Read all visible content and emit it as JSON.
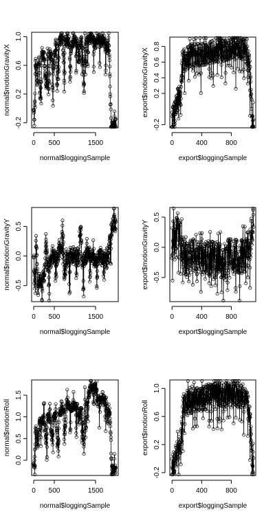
{
  "chart_data": [
    {
      "type": "scatter",
      "xlabel": "normal$loggingSample",
      "ylabel": "normal$motionGravityX",
      "xlim": [
        -50,
        2050
      ],
      "ylim": [
        -0.27,
        1.06
      ],
      "xticks": [
        0,
        500,
        1500
      ],
      "yticks": [
        -0.2,
        0.2,
        0.6,
        1.0
      ],
      "ytick_labels": [
        "-0.2",
        "0.2",
        "0.6",
        "1.0"
      ],
      "n_points": 2000,
      "segments": [
        [
          0,
          0.05
        ],
        [
          15,
          -0.2
        ],
        [
          40,
          0.7
        ],
        [
          100,
          0.3
        ],
        [
          130,
          0.75
        ],
        [
          160,
          0.1
        ],
        [
          200,
          0.8
        ],
        [
          230,
          0.72
        ],
        [
          260,
          0.65
        ],
        [
          300,
          0.3
        ],
        [
          340,
          0.8
        ],
        [
          360,
          0.2
        ],
        [
          400,
          0.75
        ],
        [
          440,
          0.7
        ],
        [
          470,
          0.5
        ],
        [
          510,
          0.75
        ],
        [
          550,
          0.85
        ],
        [
          570,
          0.2
        ],
        [
          600,
          0.9
        ],
        [
          650,
          0.95
        ],
        [
          700,
          1.0
        ],
        [
          740,
          0.5
        ],
        [
          760,
          0.95
        ],
        [
          820,
          0.9
        ],
        [
          860,
          0.95
        ],
        [
          880,
          0.6
        ],
        [
          900,
          0.8
        ],
        [
          940,
          0.9
        ],
        [
          990,
          0.95
        ],
        [
          1000,
          0.95
        ],
        [
          1060,
          0.9
        ],
        [
          1100,
          0.6
        ],
        [
          1130,
          0.9
        ],
        [
          1180,
          0.95
        ],
        [
          1220,
          0.2
        ],
        [
          1240,
          0.9
        ],
        [
          1260,
          0.5
        ],
        [
          1280,
          0.95
        ],
        [
          1320,
          0.98
        ],
        [
          1360,
          0.95
        ],
        [
          1400,
          0.97
        ],
        [
          1440,
          0.95
        ],
        [
          1500,
          0.9
        ],
        [
          1550,
          0.97
        ],
        [
          1600,
          0.98
        ],
        [
          1640,
          0.92
        ],
        [
          1700,
          0.95
        ],
        [
          1750,
          0.9
        ],
        [
          1800,
          0.8
        ],
        [
          1830,
          0.85
        ],
        [
          1860,
          0.1
        ],
        [
          1880,
          -0.2
        ],
        [
          1940,
          -0.25
        ],
        [
          1990,
          -0.2
        ]
      ],
      "amp": 0.07,
      "dips": 14
    },
    {
      "type": "scatter",
      "xlabel": "export$loggingSample",
      "ylabel": "export$motionGravityX",
      "xlim": [
        -30,
        1130
      ],
      "ylim": [
        -0.24,
        0.92
      ],
      "xticks": [
        0,
        400,
        800
      ],
      "yticks": [
        -0.2,
        0.2,
        0.4,
        0.6,
        0.8
      ],
      "ytick_labels": [
        "-0.2",
        "0.2",
        "0.4",
        "0.6",
        "0.8"
      ],
      "n_points": 1100,
      "segments": [
        [
          0,
          -0.15
        ],
        [
          30,
          -0.05
        ],
        [
          60,
          0.05
        ],
        [
          90,
          0.15
        ],
        [
          120,
          0.2
        ],
        [
          140,
          0.6
        ],
        [
          200,
          0.65
        ],
        [
          300,
          0.7
        ],
        [
          400,
          0.7
        ],
        [
          500,
          0.72
        ],
        [
          600,
          0.75
        ],
        [
          700,
          0.75
        ],
        [
          800,
          0.78
        ],
        [
          900,
          0.78
        ],
        [
          1000,
          0.75
        ],
        [
          1050,
          0.5
        ],
        [
          1080,
          -0.1
        ],
        [
          1100,
          -0.15
        ]
      ],
      "amp": 0.15,
      "dips": 40
    },
    {
      "type": "scatter",
      "xlabel": "normal$loggingSample",
      "ylabel": "normal$motionGravityY",
      "xlim": [
        -50,
        2050
      ],
      "ylim": [
        -0.77,
        0.82
      ],
      "xticks": [
        0,
        500,
        1500
      ],
      "yticks": [
        -0.5,
        0.0,
        0.5
      ],
      "ytick_labels": [
        "-0.5",
        "0.0",
        "0.5"
      ],
      "n_points": 2000,
      "segments": [
        [
          0,
          0.1
        ],
        [
          20,
          -0.5
        ],
        [
          60,
          0.3
        ],
        [
          100,
          -0.6
        ],
        [
          140,
          -0.4
        ],
        [
          200,
          -0.45
        ],
        [
          260,
          -0.3
        ],
        [
          300,
          0.2
        ],
        [
          340,
          -0.2
        ],
        [
          400,
          -0.1
        ],
        [
          450,
          -0.05
        ],
        [
          500,
          0.0
        ],
        [
          560,
          -0.05
        ],
        [
          620,
          0.05
        ],
        [
          680,
          0.1
        ],
        [
          700,
          0.7
        ],
        [
          740,
          -0.3
        ],
        [
          800,
          -0.1
        ],
        [
          860,
          0.0
        ],
        [
          900,
          0.05
        ],
        [
          940,
          -0.05
        ],
        [
          1000,
          0.0
        ],
        [
          1060,
          0.05
        ],
        [
          1100,
          -0.1
        ],
        [
          1140,
          0.5
        ],
        [
          1180,
          -0.2
        ],
        [
          1240,
          -0.05
        ],
        [
          1300,
          0.0
        ],
        [
          1360,
          0.05
        ],
        [
          1400,
          0.0
        ],
        [
          1460,
          -0.05
        ],
        [
          1500,
          -0.1
        ],
        [
          1560,
          -0.05
        ],
        [
          1600,
          0.0
        ],
        [
          1660,
          -0.05
        ],
        [
          1700,
          0.0
        ],
        [
          1760,
          -0.1
        ],
        [
          1800,
          -0.05
        ],
        [
          1850,
          0.3
        ],
        [
          1900,
          0.5
        ],
        [
          1950,
          0.55
        ],
        [
          1990,
          0.5
        ]
      ],
      "amp": 0.12,
      "dips": 12
    },
    {
      "type": "scatter",
      "xlabel": "export$loggingSample",
      "ylabel": "export$motionGravityY",
      "xlim": [
        -30,
        1130
      ],
      "ylim": [
        -0.9,
        0.66
      ],
      "xticks": [
        0,
        400,
        800
      ],
      "yticks": [
        -0.5,
        0.0,
        0.5
      ],
      "ytick_labels": [
        "-0.5",
        "0.0",
        "0.5"
      ],
      "n_points": 1100,
      "segments": [
        [
          0,
          0.1
        ],
        [
          40,
          0.2
        ],
        [
          80,
          0.25
        ],
        [
          120,
          0.1
        ],
        [
          160,
          -0.2
        ],
        [
          220,
          -0.2
        ],
        [
          300,
          -0.15
        ],
        [
          400,
          -0.15
        ],
        [
          500,
          -0.2
        ],
        [
          600,
          -0.2
        ],
        [
          700,
          -0.2
        ],
        [
          800,
          -0.15
        ],
        [
          900,
          -0.15
        ],
        [
          1000,
          -0.1
        ],
        [
          1060,
          0.1
        ],
        [
          1100,
          0.55
        ]
      ],
      "amp": 0.3,
      "dips": 40
    },
    {
      "type": "scatter",
      "xlabel": "normal$loggingSample",
      "ylabel": "normal$motionRoll",
      "xlim": [
        -50,
        2050
      ],
      "ylim": [
        -0.35,
        1.85
      ],
      "xticks": [
        0,
        500,
        1500
      ],
      "yticks": [
        0.0,
        0.5,
        1.0,
        1.5
      ],
      "ytick_labels": [
        "0.0",
        "0.5",
        "1.0",
        "1.5"
      ],
      "n_points": 2000,
      "segments": [
        [
          0,
          0.0
        ],
        [
          15,
          -0.2
        ],
        [
          40,
          0.8
        ],
        [
          100,
          0.3
        ],
        [
          140,
          0.9
        ],
        [
          200,
          0.95
        ],
        [
          260,
          0.9
        ],
        [
          300,
          0.4
        ],
        [
          340,
          1.0
        ],
        [
          400,
          0.95
        ],
        [
          440,
          0.5
        ],
        [
          480,
          0.95
        ],
        [
          540,
          1.05
        ],
        [
          580,
          0.3
        ],
        [
          620,
          1.1
        ],
        [
          680,
          1.15
        ],
        [
          720,
          1.2
        ],
        [
          760,
          0.7
        ],
        [
          800,
          1.3
        ],
        [
          860,
          1.25
        ],
        [
          900,
          1.2
        ],
        [
          940,
          1.2
        ],
        [
          1000,
          1.25
        ],
        [
          1060,
          1.2
        ],
        [
          1100,
          0.8
        ],
        [
          1140,
          1.2
        ],
        [
          1180,
          1.0
        ],
        [
          1220,
          0.2
        ],
        [
          1240,
          1.3
        ],
        [
          1260,
          0.6
        ],
        [
          1300,
          1.4
        ],
        [
          1360,
          1.6
        ],
        [
          1400,
          1.7
        ],
        [
          1440,
          1.65
        ],
        [
          1500,
          1.7
        ],
        [
          1540,
          1.3
        ],
        [
          1600,
          1.5
        ],
        [
          1660,
          1.3
        ],
        [
          1700,
          1.4
        ],
        [
          1760,
          1.35
        ],
        [
          1800,
          0.9
        ],
        [
          1840,
          1.2
        ],
        [
          1870,
          0.5
        ],
        [
          1890,
          -0.2
        ],
        [
          1950,
          -0.25
        ],
        [
          1990,
          -0.2
        ]
      ],
      "amp": 0.1,
      "dips": 14
    },
    {
      "type": "scatter",
      "xlabel": "export$loggingSample",
      "ylabel": "export$motionRoll",
      "xlim": [
        -30,
        1130
      ],
      "ylim": [
        -0.24,
        1.12
      ],
      "xticks": [
        0,
        400,
        800
      ],
      "yticks": [
        -0.2,
        0.2,
        0.6,
        1.0
      ],
      "ytick_labels": [
        "-0.2",
        "0.2",
        "0.6",
        "1.0"
      ],
      "n_points": 1100,
      "segments": [
        [
          0,
          -0.15
        ],
        [
          30,
          -0.05
        ],
        [
          60,
          0.05
        ],
        [
          100,
          0.15
        ],
        [
          130,
          0.3
        ],
        [
          150,
          0.75
        ],
        [
          220,
          0.8
        ],
        [
          300,
          0.85
        ],
        [
          400,
          0.85
        ],
        [
          500,
          0.9
        ],
        [
          600,
          0.92
        ],
        [
          700,
          0.9
        ],
        [
          800,
          0.92
        ],
        [
          900,
          0.9
        ],
        [
          1000,
          0.85
        ],
        [
          1050,
          0.6
        ],
        [
          1080,
          0.0
        ],
        [
          1100,
          -0.1
        ]
      ],
      "amp": 0.18,
      "dips": 40
    }
  ]
}
